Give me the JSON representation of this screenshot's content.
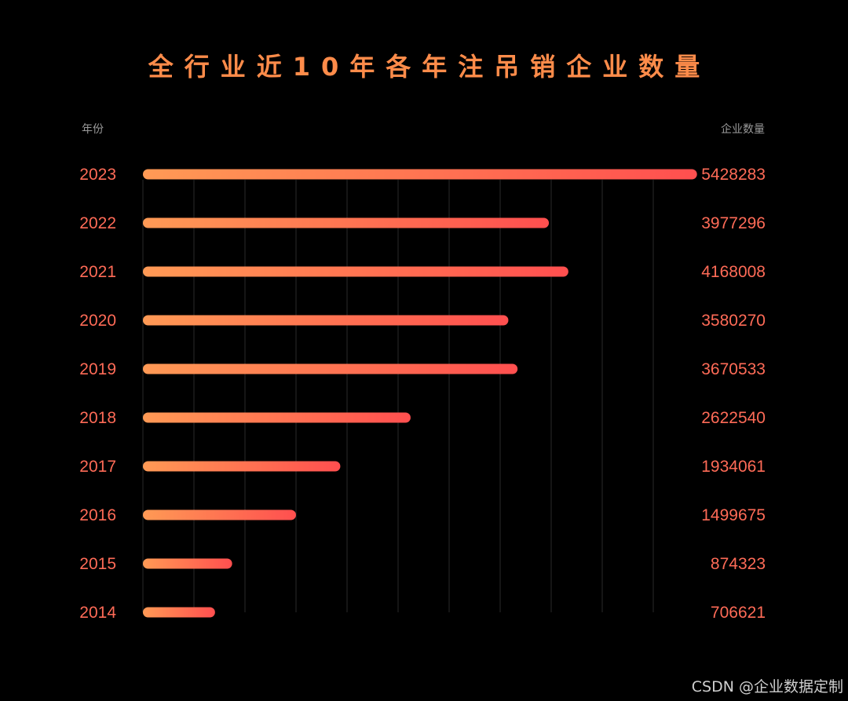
{
  "header": {
    "year_col": "年份",
    "count_col": "企业数量"
  },
  "watermark": "CSDN @企业数据定制",
  "colors": {
    "background": "#000000",
    "bar_start": "#ff9a55",
    "bar_end": "#ff4f4f",
    "label": "#ff6b57",
    "gridline": "#2a2a2a"
  },
  "chart_data": {
    "type": "bar",
    "orientation": "horizontal",
    "title": "全行业近10年各年注吊销企业数量",
    "categories": [
      "2023",
      "2022",
      "2021",
      "2020",
      "2019",
      "2018",
      "2017",
      "2016",
      "2015",
      "2014"
    ],
    "values": [
      5428283,
      3977296,
      4168008,
      3580270,
      3670533,
      2622540,
      1934061,
      1499675,
      874323,
      706621
    ],
    "value_labels": [
      "5428283",
      "3977296",
      "4168008",
      "3580270",
      "3670533",
      "2622540",
      "1934061",
      "1499675",
      "874323",
      "706621"
    ],
    "xlim": [
      0,
      6000000
    ],
    "grid": true,
    "legend": "none"
  }
}
